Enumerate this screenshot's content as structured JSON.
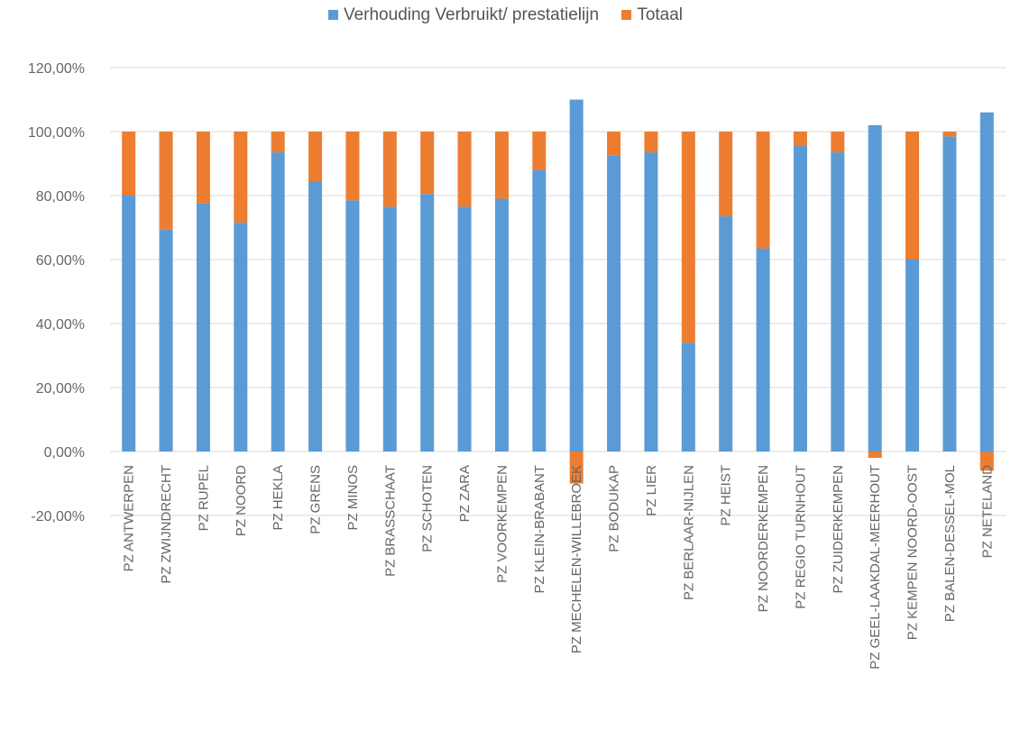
{
  "chart_data": {
    "type": "bar",
    "stacked": true,
    "legend_position": "top",
    "grid": true,
    "ylim": [
      -20,
      120
    ],
    "y_ticks": [
      "-20,00%",
      "0,00%",
      "20,00%",
      "40,00%",
      "60,00%",
      "80,00%",
      "100,00%",
      "120,00%"
    ],
    "y_tick_values": [
      -20,
      0,
      20,
      40,
      60,
      80,
      100,
      120
    ],
    "categories": [
      "PZ ANTWERPEN",
      "PZ ZWIJNDRECHT",
      "PZ RUPEL",
      "PZ NOORD",
      "PZ HEKLA",
      "PZ GRENS",
      "PZ MINOS",
      "PZ BRASSCHAAT",
      "PZ SCHOTEN",
      "PZ ZARA",
      "PZ VOORKEMPEN",
      "PZ KLEIN-BRABANT",
      "PZ MECHELEN-WILLEBROEK",
      "PZ BODUKAP",
      "PZ LIER",
      "PZ BERLAAR-NIJLEN",
      "PZ HEIST",
      "PZ NOORDERKEMPEN",
      "PZ REGIO TURNHOUT",
      "PZ ZUIDERKEMPEN",
      "PZ GEEL-LAAKDAL-MEERHOUT",
      "PZ KEMPEN NOORD-OOST",
      "PZ BALEN-DESSEL-MOL",
      "PZ NETELAND"
    ],
    "series": [
      {
        "name": "Verhouding Verbruikt/ prestatielijn",
        "color": "#5B9BD5",
        "values": [
          80,
          69.5,
          77.5,
          71.5,
          93.5,
          84.5,
          78.5,
          76.5,
          80.5,
          76.5,
          79,
          88,
          110,
          92.5,
          93.5,
          34,
          73.5,
          63.5,
          95.5,
          93.5,
          102,
          60,
          98.5,
          106
        ]
      },
      {
        "name": "Totaal",
        "color": "#ED7D31",
        "values": [
          20,
          30.5,
          22.5,
          28.5,
          6.5,
          15.5,
          21.5,
          23.5,
          19.5,
          23.5,
          21,
          12,
          -10,
          7.5,
          6.5,
          66,
          26.5,
          36.5,
          4.5,
          6.5,
          -2,
          40,
          1.5,
          -6
        ]
      }
    ]
  }
}
